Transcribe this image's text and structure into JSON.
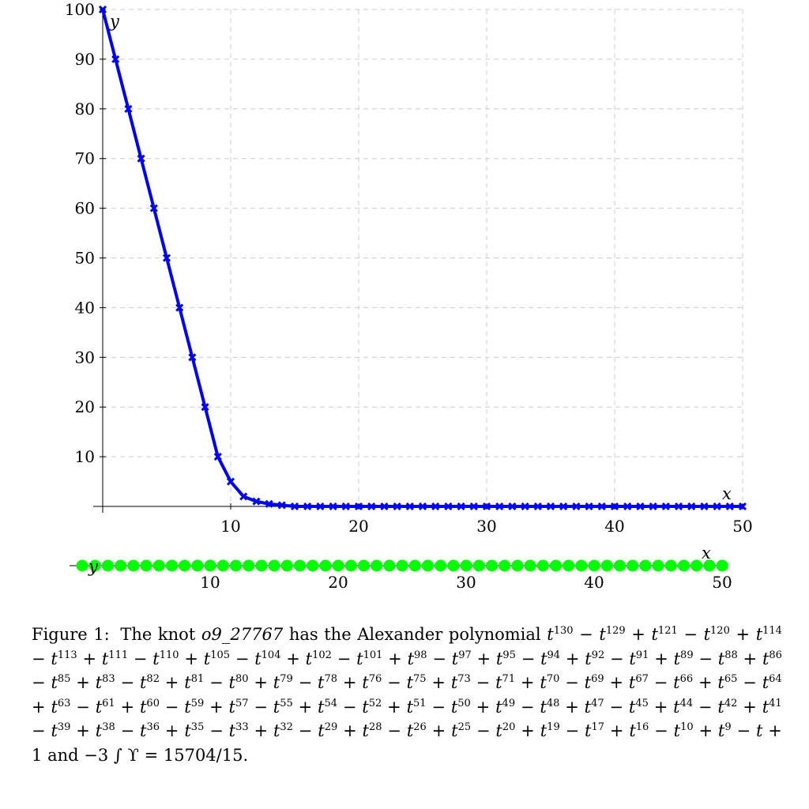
{
  "chart_data": [
    {
      "type": "line",
      "xlabel": "x",
      "ylabel": "y",
      "xlim": [
        0,
        50
      ],
      "ylim": [
        0,
        100
      ],
      "xticks": [
        10,
        20,
        30,
        40,
        50
      ],
      "yticks": [
        10,
        20,
        30,
        40,
        50,
        60,
        70,
        80,
        90,
        100
      ],
      "grid": true,
      "grid_style": "dashed",
      "series": [
        {
          "color": "#0000ff",
          "marker": "x",
          "x": [
            0,
            1,
            2,
            3,
            4,
            5,
            6,
            7,
            8,
            9,
            10,
            11,
            12,
            13,
            14,
            15,
            16,
            17,
            18,
            19,
            20,
            21,
            22,
            23,
            24,
            25,
            26,
            27,
            28,
            29,
            30,
            31,
            32,
            33,
            34,
            35,
            36,
            37,
            38,
            39,
            40,
            41,
            42,
            43,
            44,
            45,
            46,
            47,
            48,
            49,
            50
          ],
          "y": [
            100,
            90,
            80,
            70,
            60,
            50,
            40,
            30,
            20,
            10,
            5,
            2,
            1,
            0.5,
            0.25,
            0,
            0,
            0,
            0,
            0,
            0,
            0,
            0,
            0,
            0,
            0,
            0,
            0,
            0,
            0,
            0,
            0,
            0,
            0,
            0,
            0,
            0,
            0,
            0,
            0,
            0,
            0,
            0,
            0,
            0,
            0,
            0,
            0,
            0,
            0,
            0
          ]
        }
      ]
    },
    {
      "type": "scatter",
      "xlabel": "x",
      "ylabel": "y",
      "xlim": [
        0,
        50
      ],
      "xticks": [
        10,
        20,
        30,
        40,
        50
      ],
      "grid": false,
      "series": [
        {
          "color": "#00ff00",
          "marker": "circle",
          "x": [
            0,
            1,
            2,
            3,
            4,
            5,
            6,
            7,
            8,
            9,
            10,
            11,
            12,
            13,
            14,
            15,
            16,
            17,
            18,
            19,
            20,
            21,
            22,
            23,
            24,
            25,
            26,
            27,
            28,
            29,
            30,
            31,
            32,
            33,
            34,
            35,
            36,
            37,
            38,
            39,
            40,
            41,
            42,
            43,
            44,
            45,
            46,
            47,
            48,
            49,
            50
          ],
          "y": [
            0,
            0,
            0,
            0,
            0,
            0,
            0,
            0,
            0,
            0,
            0,
            0,
            0,
            0,
            0,
            0,
            0,
            0,
            0,
            0,
            0,
            0,
            0,
            0,
            0,
            0,
            0,
            0,
            0,
            0,
            0,
            0,
            0,
            0,
            0,
            0,
            0,
            0,
            0,
            0,
            0,
            0,
            0,
            0,
            0,
            0,
            0,
            0,
            0,
            0,
            0
          ]
        }
      ]
    }
  ],
  "caption": {
    "label": "Figure 1:",
    "knot_intro": "The knot",
    "knot_name": "o9_27767",
    "poly_intro": "has the Alexander polynomial",
    "polynomial": "t^130 − t^129 + t^121 − t^120 + t^114 − t^113 + t^111 − t^110 + t^105 − t^104 + t^102 − t^101 + t^98 − t^97 + t^95 − t^94 + t^92 − t^91 + t^89 − t^88 + t^86 − t^85 + t^83 − t^82 + t^81 − t^80 + t^79 − t^78 + t^76 − t^75 + t^73 − t^71 + t^70 − t^69 + t^67 − t^66 + t^65 − t^64 + t^63 − t^61 + t^60 − t^59 + t^57 − t^55 + t^54 − t^52 + t^51 − t^50 + t^49 − t^48 + t^47 − t^45 + t^44 − t^42 + t^41 − t^39 + t^38 − t^36 + t^35 − t^33 + t^32 − t^29 + t^28 − t^26 + t^25 − t^20 + t^19 − t^17 + t^16 − t^10 + t^9 − t + 1",
    "and": "and",
    "integral": "−3 ∫ ϒ = 15704/15."
  }
}
